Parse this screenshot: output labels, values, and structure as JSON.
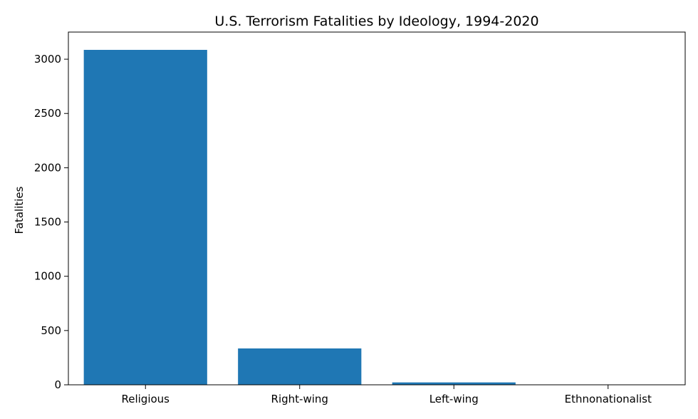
{
  "chart_data": {
    "type": "bar",
    "title": "U.S. Terrorism Fatalities by Ideology, 1994-2020",
    "xlabel": "",
    "ylabel": "Fatalities",
    "categories": [
      "Religious",
      "Right-wing",
      "Left-wing",
      "Ethnonationalist"
    ],
    "values": [
      3086,
      335,
      22,
      3
    ],
    "ylim": [
      0,
      3250
    ],
    "yticks": [
      0,
      500,
      1000,
      1500,
      2000,
      2500,
      3000
    ],
    "grid": false,
    "bar_color": "#1f77b4"
  }
}
